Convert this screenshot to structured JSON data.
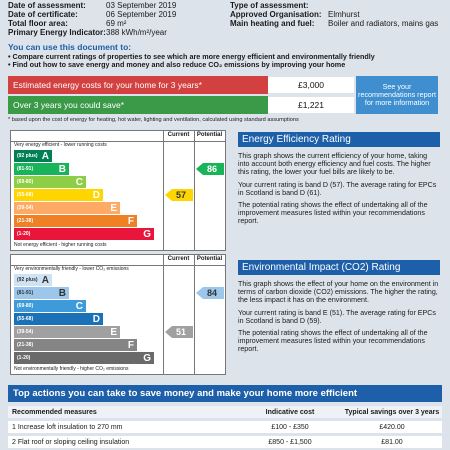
{
  "header": {
    "left": [
      {
        "label": "Date of assessment:",
        "value": "03 September 2019"
      },
      {
        "label": "Date of certificate:",
        "value": "06 September 2019"
      },
      {
        "label": "Total floor area:",
        "value": "69 m²"
      },
      {
        "label": "Primary Energy Indicator:",
        "value": "388 kWh/m²/year"
      }
    ],
    "right_partial": "Type of assessment:",
    "right": [
      {
        "label": "Approved Organisation:",
        "value": "Elmhurst"
      },
      {
        "label": "Main heating and fuel:",
        "value": "Boiler and radiators, mains gas"
      }
    ]
  },
  "uses": {
    "title": "You can use this document to:",
    "bullets": [
      "Compare current ratings of properties to see which are more energy efficient and environmentally friendly",
      "Find out how to save energy and money and also reduce CO₂ emissions by improving your home"
    ]
  },
  "costs": {
    "rows": [
      {
        "label": "Estimated energy costs for your home for 3 years*",
        "value": "£3,000"
      },
      {
        "label": "Over 3 years you could save*",
        "value": "£1,221"
      }
    ],
    "note": "See your recommendations report for more information",
    "footnote": "* based upon the cost of energy for heating, hot water, lighting and ventilation, calculated using standard assumptions"
  },
  "energy_efficiency": {
    "top_label": "Very energy efficient - lower running costs",
    "bottom_label": "Not energy efficient - higher running costs",
    "current_header": "Current",
    "potential_header": "Potential",
    "bands": [
      {
        "range": "(92 plus)",
        "letter": "A"
      },
      {
        "range": "(81-91)",
        "letter": "B"
      },
      {
        "range": "(69-80)",
        "letter": "C"
      },
      {
        "range": "(55-68)",
        "letter": "D"
      },
      {
        "range": "(39-54)",
        "letter": "E"
      },
      {
        "range": "(21-38)",
        "letter": "F"
      },
      {
        "range": "(1-20)",
        "letter": "G"
      }
    ],
    "current": 57,
    "potential": 86,
    "heading": "Energy Efficiency Rating",
    "paragraphs": [
      "This graph shows the current efficiency of your home, taking into account both energy efficiency and fuel costs. The higher this rating, the lower your fuel bills are likely to be.",
      "Your current rating is band D (57). The average rating for EPCs in Scotland is band D (61).",
      "The potential rating shows the effect of undertaking all of the improvement measures listed within your recommendations report."
    ]
  },
  "environmental_impact": {
    "top_label": "Very environmentally friendly - lower CO₂ emissions",
    "bottom_label": "Not environmentally friendly - higher CO₂ emissions",
    "current_header": "Current",
    "potential_header": "Potential",
    "bands": [
      {
        "range": "(92 plus)",
        "letter": "A"
      },
      {
        "range": "(81-91)",
        "letter": "B"
      },
      {
        "range": "(69-80)",
        "letter": "C"
      },
      {
        "range": "(55-68)",
        "letter": "D"
      },
      {
        "range": "(39-54)",
        "letter": "E"
      },
      {
        "range": "(21-38)",
        "letter": "F"
      },
      {
        "range": "(1-20)",
        "letter": "G"
      }
    ],
    "current": 51,
    "potential": 84,
    "heading": "Environmental Impact (CO2) Rating",
    "paragraphs": [
      "This graph shows the effect of your home on the environment in terms of carbon dioxide (CO2) emissions. The higher the rating, the less impact it has on the environment.",
      "Your current rating is band E (51). The average rating for EPCs in Scotland is band D (59).",
      "The potential rating shows the effect of undertaking all of the improvement measures listed within your recommendations report."
    ]
  },
  "actions": {
    "title": "Top actions you can take to save money and make your home more efficient",
    "columns": [
      "Recommended measures",
      "Indicative cost",
      "Typical savings over 3 years"
    ],
    "rows": [
      [
        "1 Increase loft insulation to 270 mm",
        "£100 - £350",
        "£420.00"
      ],
      [
        "2 Flat roof or sloping ceiling insulation",
        "£850 - £1,500",
        "£81.00"
      ]
    ]
  }
}
